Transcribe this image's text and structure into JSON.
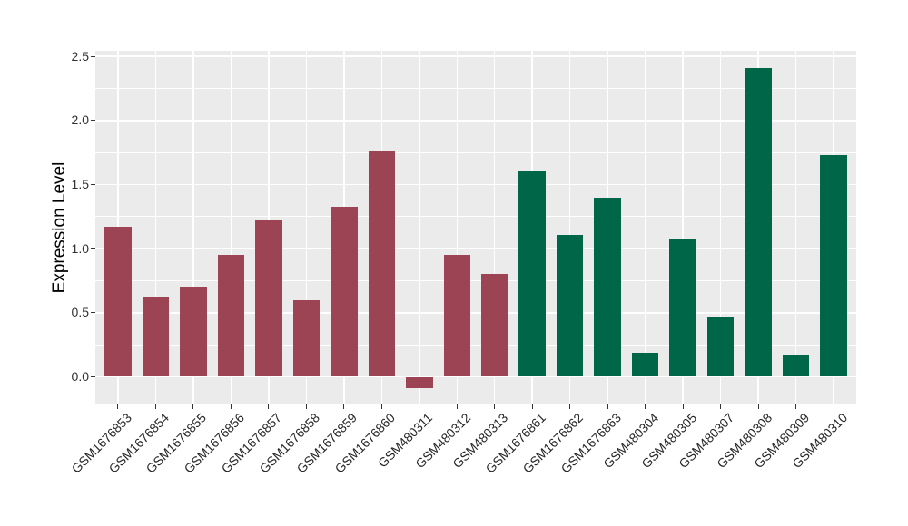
{
  "chart_data": {
    "type": "bar",
    "title": "",
    "xlabel": "",
    "ylabel": "Expression Level",
    "categories": [
      "GSM1676853",
      "GSM1676854",
      "GSM1676855",
      "GSM1676856",
      "GSM1676857",
      "GSM1676858",
      "GSM1676859",
      "GSM1676860",
      "GSM480311",
      "GSM480312",
      "GSM480313",
      "GSM1676861",
      "GSM1676862",
      "GSM1676863",
      "GSM480304",
      "GSM480305",
      "GSM480307",
      "GSM480308",
      "GSM480309",
      "GSM480310"
    ],
    "values": [
      1.17,
      0.62,
      0.7,
      0.95,
      1.22,
      0.6,
      1.33,
      1.76,
      -0.09,
      0.95,
      0.8,
      1.6,
      1.11,
      1.4,
      0.19,
      1.07,
      0.46,
      2.41,
      0.17,
      1.73
    ],
    "bar_groups": [
      "maroon",
      "maroon",
      "maroon",
      "maroon",
      "maroon",
      "maroon",
      "maroon",
      "maroon",
      "maroon",
      "maroon",
      "maroon",
      "green",
      "green",
      "green",
      "green",
      "green",
      "green",
      "green",
      "green",
      "green"
    ],
    "group_colors": {
      "maroon": "#9C4453",
      "green": "#006648"
    },
    "yticks": [
      "0.0",
      "0.5",
      "1.0",
      "1.5",
      "2.0",
      "2.5"
    ],
    "ylim": [
      -0.21,
      2.54
    ],
    "x_tick_rotation_deg": 45,
    "legend": "none",
    "grid": {
      "major": true,
      "minor": true,
      "color": "#FFFFFF"
    },
    "panel_background": "#EBEBEB",
    "axis_text_color": "#303030",
    "tick_mark_color": "#333333"
  }
}
